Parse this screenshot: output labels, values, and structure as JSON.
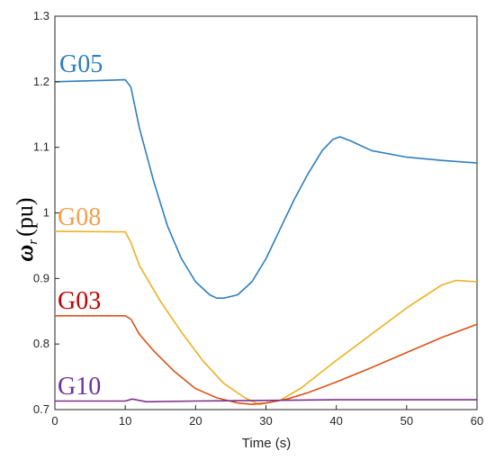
{
  "chart_data": {
    "type": "line",
    "xlabel": "Time (s)",
    "ylabel": {
      "symbol": "ω",
      "subscript": "r",
      "unit": "(pu)"
    },
    "xlim": [
      0,
      60
    ],
    "ylim": [
      0.7,
      1.3
    ],
    "xticks": [
      "0",
      "10",
      "20",
      "30",
      "40",
      "50",
      "60"
    ],
    "yticks": [
      "0.7",
      "0.8",
      "0.9",
      "1",
      "1.1",
      "1.2",
      "1.3"
    ],
    "grid": false,
    "series": [
      {
        "name": "G05",
        "color": "#2E7EBF",
        "x": [
          0,
          10,
          10.8,
          12,
          14,
          16,
          18,
          20,
          22,
          23,
          24,
          26,
          28,
          30,
          32,
          34,
          36,
          38,
          39.5,
          40.5,
          42,
          45,
          50,
          55,
          60
        ],
        "values": [
          1.2,
          1.203,
          1.192,
          1.13,
          1.05,
          0.98,
          0.93,
          0.895,
          0.875,
          0.87,
          0.87,
          0.875,
          0.895,
          0.93,
          0.975,
          1.02,
          1.06,
          1.095,
          1.112,
          1.116,
          1.11,
          1.095,
          1.085,
          1.08,
          1.076
        ]
      },
      {
        "name": "G08",
        "color": "#EDB120",
        "x": [
          0,
          10,
          10.8,
          12,
          15,
          18,
          21,
          24,
          27,
          29,
          32,
          35,
          40,
          45,
          50,
          55,
          57,
          60
        ],
        "values": [
          0.972,
          0.971,
          0.955,
          0.92,
          0.865,
          0.818,
          0.775,
          0.74,
          0.718,
          0.708,
          0.714,
          0.733,
          0.775,
          0.815,
          0.855,
          0.89,
          0.897,
          0.895
        ]
      },
      {
        "name": "G03",
        "color": "#D95319",
        "x": [
          0,
          10,
          10.8,
          12,
          14,
          17,
          20,
          23,
          26,
          28,
          30,
          33,
          36,
          40,
          45,
          50,
          55,
          60
        ],
        "values": [
          0.843,
          0.843,
          0.838,
          0.815,
          0.79,
          0.758,
          0.732,
          0.718,
          0.71,
          0.708,
          0.71,
          0.716,
          0.726,
          0.742,
          0.764,
          0.787,
          0.81,
          0.83
        ]
      },
      {
        "name": "G10",
        "color": "#7E2F8E",
        "x": [
          0,
          10,
          11,
          13,
          20,
          30,
          40,
          50,
          60
        ],
        "values": [
          0.713,
          0.713,
          0.716,
          0.712,
          0.713,
          0.714,
          0.715,
          0.715,
          0.715
        ]
      }
    ],
    "labels": [
      {
        "text": "G05",
        "color": "#2E7EBF"
      },
      {
        "text": "G08",
        "color": "#F0A04B"
      },
      {
        "text": "G03",
        "color": "#C00000"
      },
      {
        "text": "G10",
        "color": "#7030A0"
      }
    ]
  }
}
